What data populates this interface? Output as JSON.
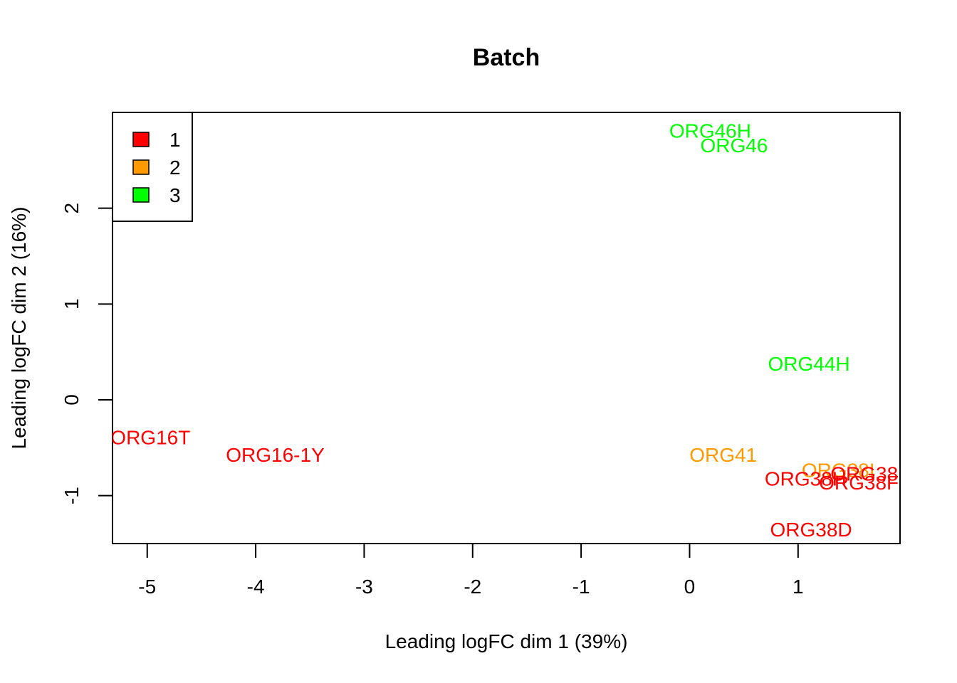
{
  "chart_data": {
    "type": "scatter",
    "title": "Batch",
    "xlabel": "Leading logFC dim 1 (39%)",
    "ylabel": "Leading logFC dim 2 (16%)",
    "xlim": [
      -5.32,
      1.94
    ],
    "ylim": [
      -1.5,
      3.0
    ],
    "x_ticks": [
      -5,
      -4,
      -3,
      -2,
      -1,
      0,
      1
    ],
    "y_ticks": [
      -1,
      0,
      1,
      2
    ],
    "grid": false,
    "legend": {
      "placement": "top-left",
      "entries": [
        {
          "label": "1",
          "color": "#ff0000"
        },
        {
          "label": "2",
          "color": "#ff9900"
        },
        {
          "label": "3",
          "color": "#00ff00"
        }
      ]
    },
    "points": [
      {
        "label": "ORG46H",
        "x": 0.19,
        "y": 2.81,
        "group": "3"
      },
      {
        "label": "ORG46",
        "x": 0.41,
        "y": 2.66,
        "group": "3"
      },
      {
        "label": "ORG44H",
        "x": 1.1,
        "y": 0.38,
        "group": "3"
      },
      {
        "label": "ORG16T",
        "x": -4.97,
        "y": -0.39,
        "group": "1"
      },
      {
        "label": "ORG16-1Y",
        "x": -3.82,
        "y": -0.57,
        "group": "1"
      },
      {
        "label": "ORG41",
        "x": 0.31,
        "y": -0.57,
        "group": "2"
      },
      {
        "label": "ORG38I",
        "x": 1.37,
        "y": -0.73,
        "group": "2"
      },
      {
        "label": "ORG38",
        "x": 1.61,
        "y": -0.77,
        "group": "1"
      },
      {
        "label": "ORG38H",
        "x": 1.07,
        "y": -0.82,
        "group": "1"
      },
      {
        "label": "ORG38F",
        "x": 1.56,
        "y": -0.86,
        "group": "1"
      },
      {
        "label": "ORG38D",
        "x": 1.12,
        "y": -1.35,
        "group": "1"
      }
    ]
  }
}
